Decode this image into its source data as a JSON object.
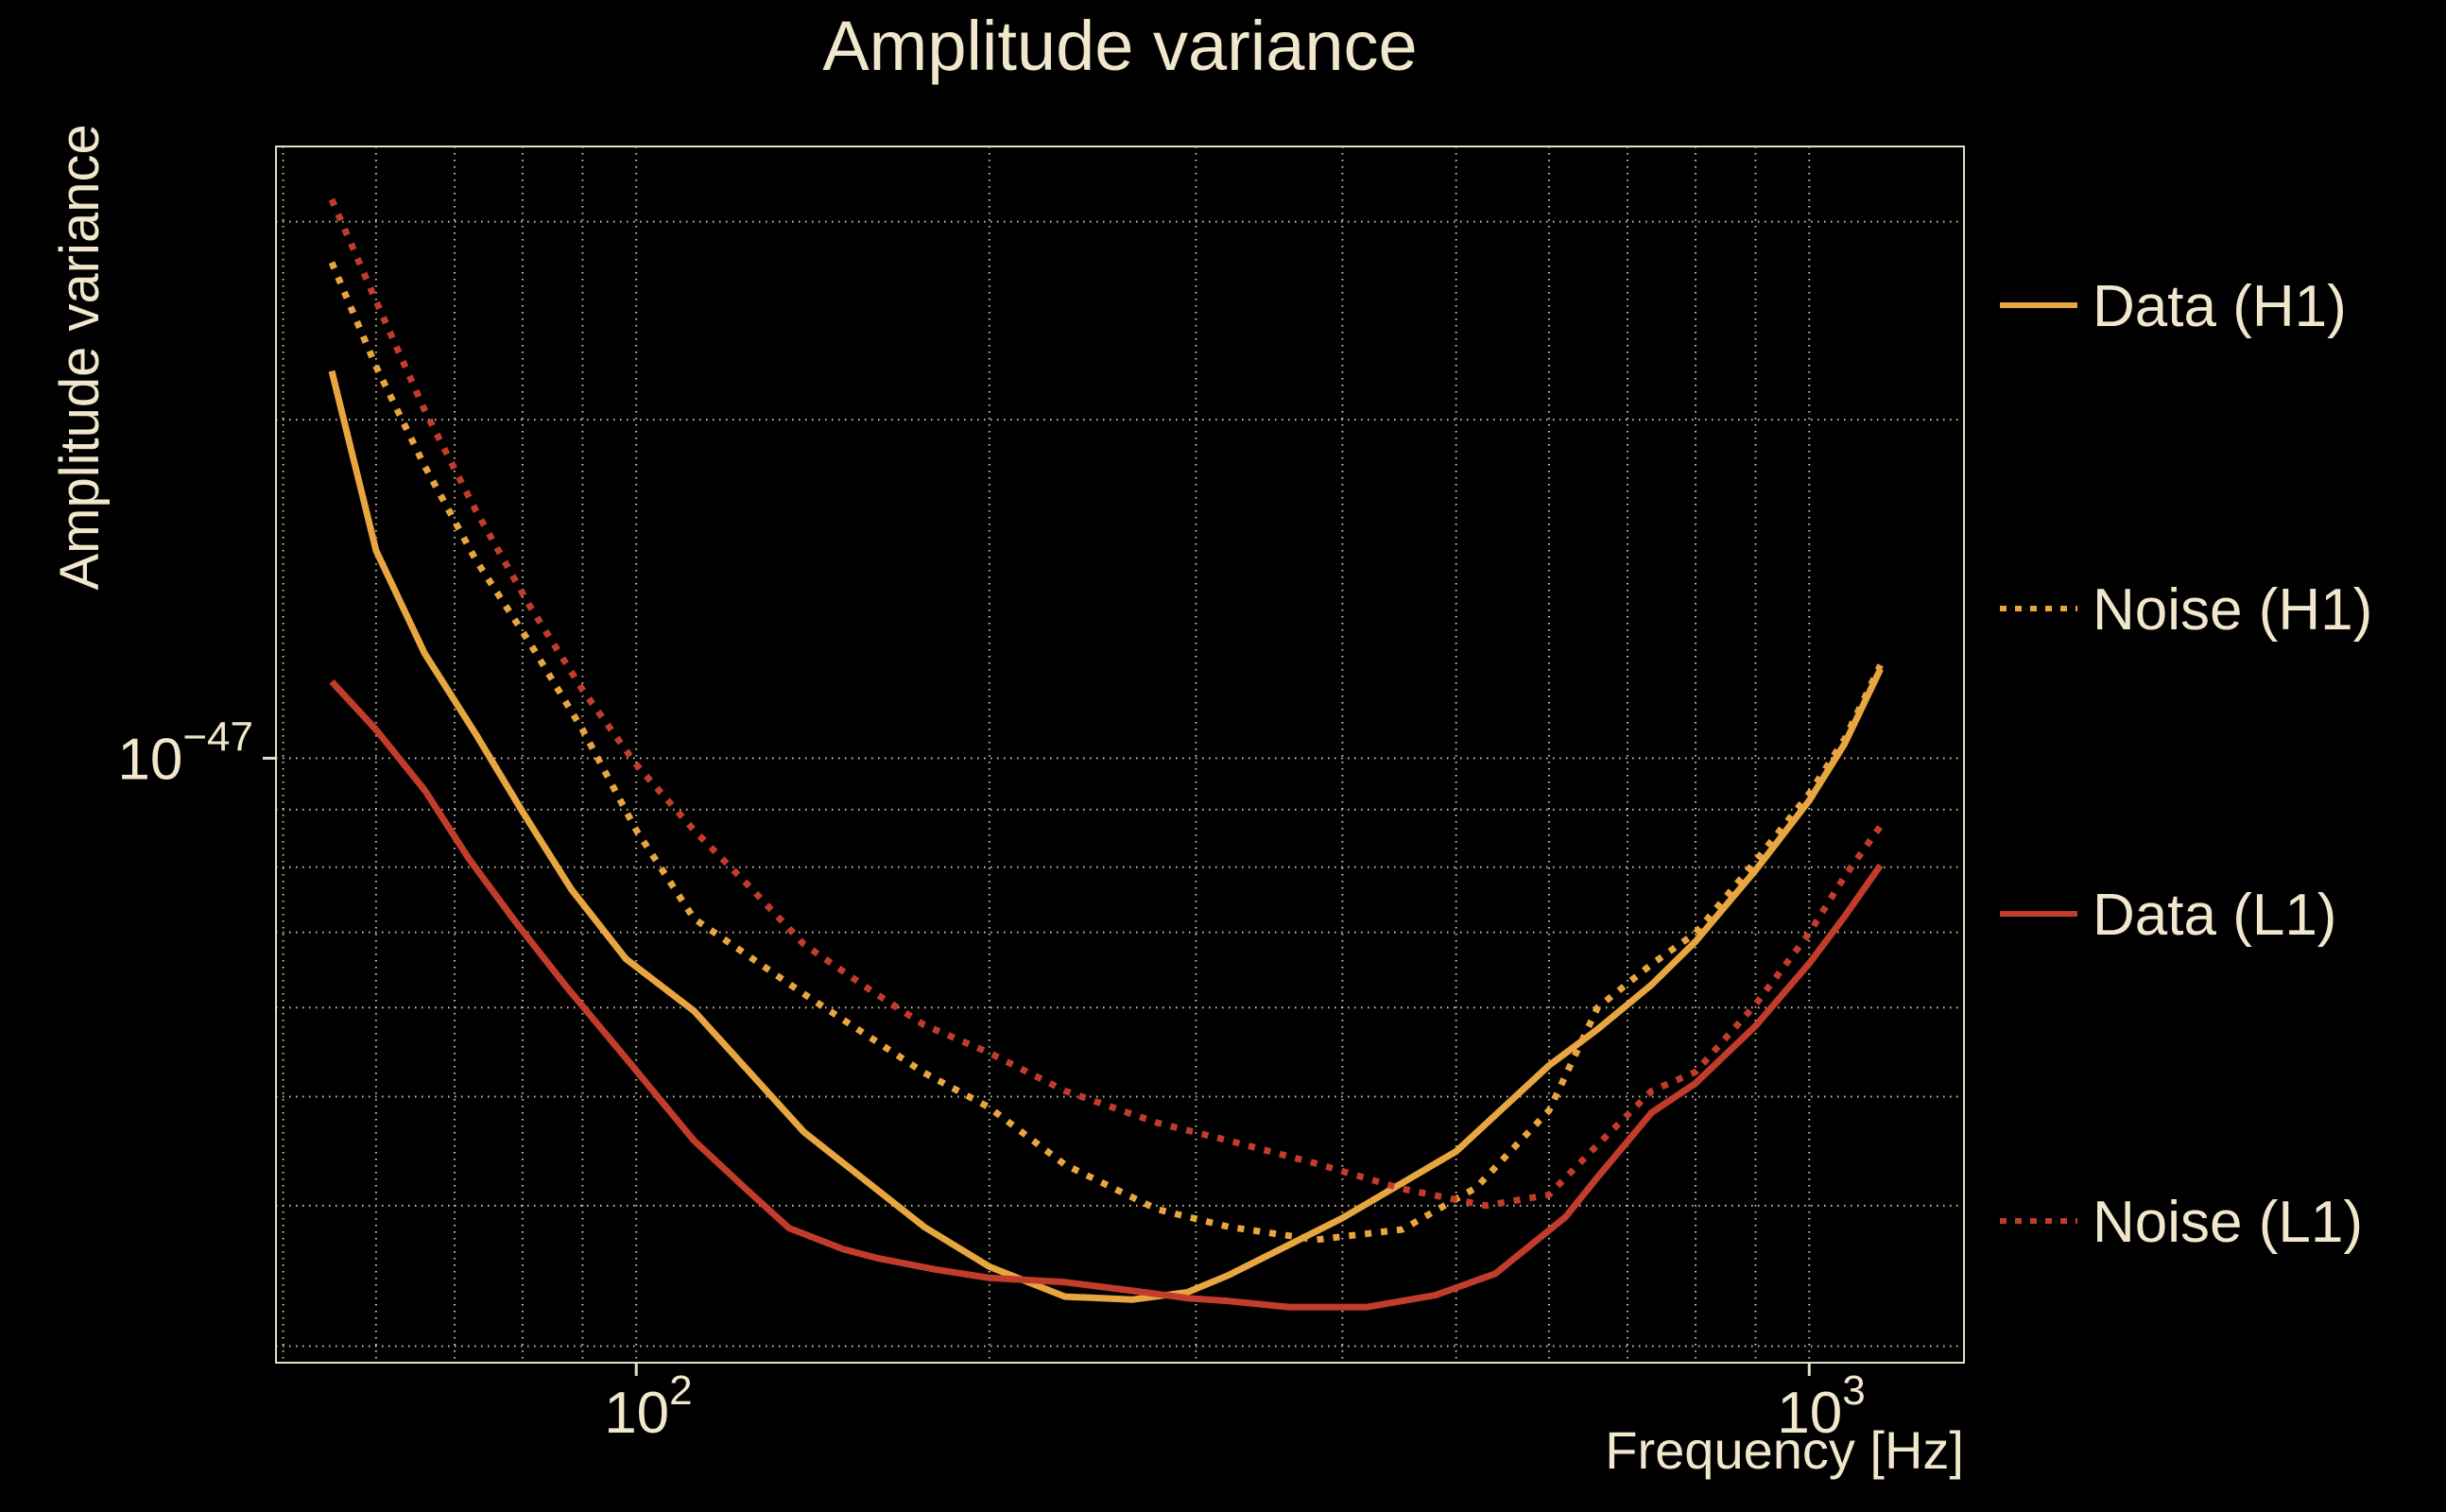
{
  "figure": {
    "title": "Amplitude variance",
    "xlabel": "Frequency [Hz]",
    "ylabel": "Amplitude variance",
    "background_color": "#000000",
    "text_color": "#F0E7CC",
    "grid_color": "#F0E7CC",
    "spine_color": "#E5DEC8"
  },
  "colors": {
    "h1": "#E8A640",
    "l1": "#C23C2C"
  },
  "legend": {
    "entries": [
      {
        "key": "data-h1",
        "label": "Data (H1)",
        "color": "#E8A640",
        "line_style": "solid"
      },
      {
        "key": "noise-h1",
        "label": "Noise (H1)",
        "color": "#E8A640",
        "line_style": "dotted"
      },
      {
        "key": "data-l1",
        "label": "Data (L1)",
        "color": "#C23C2C",
        "line_style": "solid"
      },
      {
        "key": "noise-l1",
        "label": "Noise (L1)",
        "color": "#C23C2C",
        "line_style": "dotted"
      }
    ]
  },
  "chart_data": {
    "type": "line",
    "title": "Amplitude variance",
    "xlabel": "Frequency [Hz]",
    "ylabel": "Amplitude variance",
    "x_scale": "log",
    "y_scale": "log",
    "xlim": [
      49.3,
      1355
    ],
    "ylim": [
      2.9e-48,
      3.5e-47
    ],
    "grid": true,
    "legend_position": "right-outside",
    "x_ticks_major": [
      {
        "value": 100,
        "base": "10",
        "exp": "2"
      },
      {
        "value": 1000,
        "base": "10",
        "exp": "3"
      }
    ],
    "x_ticks_minor": [
      50,
      60,
      70,
      80,
      90,
      200,
      300,
      400,
      500,
      600,
      700,
      800,
      900
    ],
    "y_ticks_major": [
      {
        "value": 1e-47,
        "base": "10",
        "exp": "−47"
      }
    ],
    "y_ticks_minor": [
      3e-48,
      4e-48,
      5e-48,
      6e-48,
      7e-48,
      8e-48,
      9e-48,
      2e-47,
      3e-47
    ],
    "series": [
      {
        "name": "Data (H1)",
        "key": "data-h1",
        "color": "#E8A640",
        "style": "solid",
        "points": [
          [
            55,
            2.21e-47
          ],
          [
            60,
            1.53e-47
          ],
          [
            66,
            1.24e-47
          ],
          [
            73,
            1.05e-47
          ],
          [
            80,
            8.96e-48
          ],
          [
            88,
            7.65e-48
          ],
          [
            98,
            6.63e-48
          ],
          [
            112,
            5.96e-48
          ],
          [
            139,
            4.65e-48
          ],
          [
            176,
            3.83e-48
          ],
          [
            200,
            3.53e-48
          ],
          [
            232,
            3.32e-48
          ],
          [
            265,
            3.3e-48
          ],
          [
            295,
            3.35e-48
          ],
          [
            320,
            3.47e-48
          ],
          [
            400,
            3.9e-48
          ],
          [
            500,
            4.47e-48
          ],
          [
            600,
            5.33e-48
          ],
          [
            660,
            5.74e-48
          ],
          [
            734,
            6.29e-48
          ],
          [
            800,
            6.87e-48
          ],
          [
            900,
            7.95e-48
          ],
          [
            1000,
            9.17e-48
          ],
          [
            1072,
            1.03e-47
          ],
          [
            1150,
            1.2e-47
          ]
        ]
      },
      {
        "name": "Noise (H1)",
        "key": "noise-h1",
        "color": "#E8A640",
        "style": "dotted",
        "points": [
          [
            55,
            2.76e-47
          ],
          [
            60,
            2.23e-47
          ],
          [
            66,
            1.82e-47
          ],
          [
            73,
            1.5e-47
          ],
          [
            81,
            1.27e-47
          ],
          [
            90,
            1.06e-47
          ],
          [
            100,
            8.63e-48
          ],
          [
            112,
            7.2e-48
          ],
          [
            139,
            6.17e-48
          ],
          [
            176,
            5.25e-48
          ],
          [
            200,
            4.89e-48
          ],
          [
            232,
            4.35e-48
          ],
          [
            278,
            3.97e-48
          ],
          [
            320,
            3.83e-48
          ],
          [
            380,
            3.73e-48
          ],
          [
            450,
            3.81e-48
          ],
          [
            520,
            4.15e-48
          ],
          [
            600,
            4.86e-48
          ],
          [
            660,
            6e-48
          ],
          [
            734,
            6.56e-48
          ],
          [
            800,
            6.99e-48
          ],
          [
            900,
            8.1e-48
          ],
          [
            1000,
            9.3e-48
          ],
          [
            1072,
            1.04e-47
          ],
          [
            1150,
            1.21e-47
          ]
        ]
      },
      {
        "name": "Data (L1)",
        "key": "data-l1",
        "color": "#C23C2C",
        "style": "solid",
        "points": [
          [
            55,
            1.17e-47
          ],
          [
            60,
            1.06e-47
          ],
          [
            66,
            9.37e-48
          ],
          [
            72,
            8.14e-48
          ],
          [
            79,
            7.14e-48
          ],
          [
            87,
            6.28e-48
          ],
          [
            98,
            5.41e-48
          ],
          [
            112,
            4.57e-48
          ],
          [
            124,
            4.14e-48
          ],
          [
            135,
            3.82e-48
          ],
          [
            150,
            3.66e-48
          ],
          [
            161,
            3.59e-48
          ],
          [
            180,
            3.51e-48
          ],
          [
            200,
            3.45e-48
          ],
          [
            232,
            3.42e-48
          ],
          [
            265,
            3.36e-48
          ],
          [
            295,
            3.31e-48
          ],
          [
            320,
            3.29e-48
          ],
          [
            360,
            3.25e-48
          ],
          [
            420,
            3.25e-48
          ],
          [
            480,
            3.33e-48
          ],
          [
            540,
            3.48e-48
          ],
          [
            620,
            3.91e-48
          ],
          [
            660,
            4.24e-48
          ],
          [
            734,
            4.84e-48
          ],
          [
            800,
            5.14e-48
          ],
          [
            900,
            5.78e-48
          ],
          [
            1000,
            6.57e-48
          ],
          [
            1072,
            7.23e-48
          ],
          [
            1150,
            8.03e-48
          ]
        ]
      },
      {
        "name": "Noise (L1)",
        "key": "noise-l1",
        "color": "#C23C2C",
        "style": "dotted",
        "points": [
          [
            55,
            3.14e-47
          ],
          [
            60,
            2.55e-47
          ],
          [
            66,
            2.04e-47
          ],
          [
            73,
            1.66e-47
          ],
          [
            81,
            1.37e-47
          ],
          [
            90,
            1.15e-47
          ],
          [
            100,
            9.87e-48
          ],
          [
            112,
            8.63e-48
          ],
          [
            125,
            7.68e-48
          ],
          [
            139,
            6.83e-48
          ],
          [
            158,
            6.23e-48
          ],
          [
            176,
            5.79e-48
          ],
          [
            200,
            5.47e-48
          ],
          [
            232,
            5.06e-48
          ],
          [
            278,
            4.74e-48
          ],
          [
            320,
            4.57e-48
          ],
          [
            380,
            4.36e-48
          ],
          [
            450,
            4.14e-48
          ],
          [
            530,
            4e-48
          ],
          [
            600,
            4.09e-48
          ],
          [
            660,
            4.53e-48
          ],
          [
            734,
            5.06e-48
          ],
          [
            800,
            5.26e-48
          ],
          [
            900,
            6.04e-48
          ],
          [
            1000,
            6.99e-48
          ],
          [
            1072,
            7.85e-48
          ],
          [
            1150,
            8.7e-48
          ]
        ]
      }
    ]
  }
}
